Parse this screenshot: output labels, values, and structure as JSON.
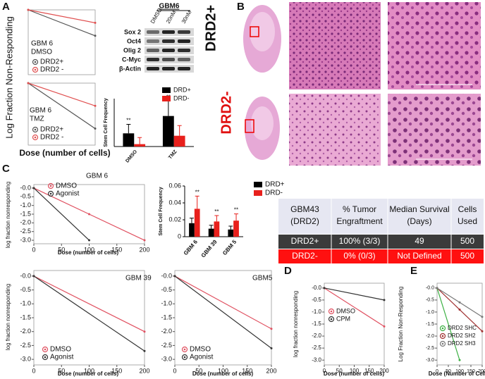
{
  "panel_labels": [
    "A",
    "B",
    "C",
    "D",
    "E"
  ],
  "blot": {
    "title": "GBM6",
    "lanes": [
      "DMSO",
      "20nM",
      "30nM"
    ],
    "rows": [
      "Sox 2",
      "Oct4",
      "Olig 2",
      "C-Myc",
      "β-Actin"
    ]
  },
  "histology": {
    "row_labels": [
      "DRD2+",
      "DRD2-"
    ]
  },
  "table": {
    "header": [
      [
        "GBM43",
        "(DRD2)"
      ],
      [
        "% Tumor",
        "Engraftment"
      ],
      [
        "Median Survival",
        "(Days)"
      ],
      [
        "Cells",
        "Used"
      ]
    ],
    "rows": [
      [
        "DRD2+",
        "100% (3/3)",
        "49",
        "500"
      ],
      [
        "DRD2-",
        "0% (0/3)",
        "Not Defined",
        "500"
      ]
    ]
  },
  "chart_data": [
    {
      "type": "line",
      "title": "GBM 6",
      "subtitle": "DMSO",
      "ylabel": "Log Fraction Non-Responding",
      "x": [
        0,
        200
      ],
      "xlim": [
        0,
        200
      ],
      "ylim": [
        -3,
        0
      ],
      "series": [
        {
          "name": "DRD2+",
          "color": "#555555",
          "values": [
            0,
            -1.2
          ]
        },
        {
          "name": "DRD2 -",
          "color": "#e05050",
          "values": [
            0,
            -0.6
          ]
        }
      ]
    },
    {
      "type": "line",
      "title": "GBM 6",
      "subtitle": "TMZ",
      "xlabel": "Dose (number of cells)",
      "x": [
        0,
        200
      ],
      "xlim": [
        0,
        200
      ],
      "ylim": [
        -3,
        0
      ],
      "series": [
        {
          "name": "DRD2+",
          "color": "#555555",
          "values": [
            0,
            -2.2
          ]
        },
        {
          "name": "DRD2 -",
          "color": "#e05050",
          "values": [
            0,
            -1.1
          ]
        }
      ]
    },
    {
      "type": "bar",
      "ylabel": "Stem Cell Frequency",
      "categories": [
        "DMSO",
        "TMZ"
      ],
      "ylim": [
        0,
        0.008
      ],
      "series": [
        {
          "name": "DRD+",
          "color": "#000000",
          "values": [
            0.0022,
            0.0051
          ],
          "errors": [
            0.0015,
            0.0025
          ],
          "significance": [
            "**",
            "**"
          ]
        },
        {
          "name": "DRD-",
          "color": "#e8201c",
          "values": [
            0.0004,
            0.0018
          ],
          "errors": [
            0.0011,
            0.0017
          ]
        }
      ]
    },
    {
      "type": "line",
      "title": "GBM 6",
      "ylabel": "log fraction nonresponding",
      "xlabel": "Dose (number of cells)",
      "x": [
        0,
        100,
        200
      ],
      "xlim": [
        0,
        200
      ],
      "ylim": [
        -3.2,
        0.2
      ],
      "xticks": [
        0,
        50,
        100,
        150,
        200
      ],
      "yticks": [
        {
          "value": 0,
          "label": "-0.0"
        },
        -0.5,
        {
          "value": -1,
          "label": "-1.0"
        },
        -1.5,
        {
          "value": -2,
          "label": "-2.0"
        },
        -2.5,
        {
          "value": -3,
          "label": "-3.0"
        }
      ],
      "series": [
        {
          "name": "DMSO",
          "color": "#e05060",
          "values": [
            0,
            -1.5,
            -3.0
          ]
        },
        {
          "name": "Agonist",
          "color": "#333333",
          "values": [
            0,
            -3.0,
            null
          ]
        }
      ]
    },
    {
      "type": "bar",
      "ylabel": "Stem Cell Frequency",
      "categories": [
        "GBM 6",
        "GBM 39",
        "GBM 5"
      ],
      "ylim": [
        0,
        0.06
      ],
      "yticks": [
        0,
        0.02,
        0.04,
        0.06
      ],
      "series": [
        {
          "name": "DRD+",
          "color": "#000000",
          "values": [
            0.016,
            0.0095,
            0.0085
          ],
          "errors": [
            0.006,
            0.004,
            0.004
          ]
        },
        {
          "name": "DRD-",
          "color": "#e8201c",
          "values": [
            0.033,
            0.018,
            0.019
          ],
          "errors": [
            0.015,
            0.007,
            0.008
          ],
          "significance": [
            "**",
            "**",
            "**"
          ]
        }
      ]
    },
    {
      "type": "line",
      "title": "GBM 39",
      "ylabel": "log fraction nonresponding",
      "xlabel": "Dose (number of cells)",
      "x": [
        0,
        200
      ],
      "xlim": [
        0,
        200
      ],
      "ylim": [
        -3.2,
        0.2
      ],
      "xticks": [
        0,
        50,
        100,
        150,
        200
      ],
      "yticks": [
        {
          "value": 0,
          "label": "-0.0"
        },
        -0.5,
        {
          "value": -1,
          "label": "-1.0"
        },
        -1.5,
        {
          "value": -2,
          "label": "-2.0"
        },
        -2.5,
        {
          "value": -3,
          "label": "-3.0"
        }
      ],
      "series": [
        {
          "name": "DMSO",
          "color": "#e05060",
          "values": [
            0,
            -2.0
          ]
        },
        {
          "name": "Agonist",
          "color": "#333333",
          "values": [
            0,
            -2.7
          ]
        }
      ]
    },
    {
      "type": "line",
      "title": "GBM5",
      "xlabel": "Dose (number of cells)",
      "x": [
        0,
        200
      ],
      "xlim": [
        0,
        200
      ],
      "ylim": [
        -3.2,
        0.2
      ],
      "xticks": [
        0,
        50,
        100,
        150,
        200
      ],
      "yticks": [
        {
          "value": 0,
          "label": "-0.0"
        },
        -0.5,
        {
          "value": -1,
          "label": "-1.0"
        },
        -1.5,
        {
          "value": -2,
          "label": "-2.0"
        },
        -2.5,
        {
          "value": -3,
          "label": "-3.0"
        }
      ],
      "series": [
        {
          "name": "DMSO",
          "color": "#e05060",
          "values": [
            0,
            -1.9
          ]
        },
        {
          "name": "Agonist",
          "color": "#333333",
          "values": [
            0,
            -2.6
          ]
        }
      ]
    },
    {
      "type": "line",
      "ylabel": "log fraction nonresponding",
      "xlabel": "Dose (number of cells)",
      "x": [
        0,
        200
      ],
      "xlim": [
        0,
        200
      ],
      "ylim": [
        -3.2,
        0.2
      ],
      "xticks": [
        0,
        50,
        100,
        150,
        200
      ],
      "yticks": [
        {
          "value": 0,
          "label": "-0.0"
        },
        -0.5,
        {
          "value": -1,
          "label": "-1.0"
        },
        -1.5,
        {
          "value": -2,
          "label": "-2.0"
        },
        -2.5,
        {
          "value": -3,
          "label": "-3.0"
        }
      ],
      "series": [
        {
          "name": "DMSO",
          "color": "#e05060",
          "values": [
            0,
            -1.6
          ]
        },
        {
          "name": "CPM",
          "color": "#333333",
          "values": [
            0,
            -0.5
          ]
        }
      ]
    },
    {
      "type": "line",
      "ylabel": "Log Fraction Non-Responding",
      "xlabel": "Dose (Number of Cells)",
      "x": [
        0,
        100,
        200
      ],
      "xlim": [
        0,
        200
      ],
      "ylim": [
        -3.2,
        0.2
      ],
      "xticks": [
        0,
        50,
        100,
        150,
        200
      ],
      "yticks": [
        {
          "value": 0,
          "label": "-0.0"
        },
        -0.5,
        {
          "value": -1,
          "label": "-1.0"
        },
        -1.5,
        {
          "value": -2,
          "label": "-2.0"
        },
        -2.5,
        {
          "value": -3,
          "label": "-3.0"
        }
      ],
      "series": [
        {
          "name": "DRD2 SHC",
          "color": "#3cb043",
          "values": [
            0,
            -3.0,
            null
          ]
        },
        {
          "name": "DRD2 SH2",
          "color": "#a03030",
          "values": [
            0,
            -0.9,
            -1.8
          ]
        },
        {
          "name": "DRD2 SH3",
          "color": "#777777",
          "values": [
            0,
            -0.6,
            -1.2
          ]
        }
      ]
    }
  ]
}
